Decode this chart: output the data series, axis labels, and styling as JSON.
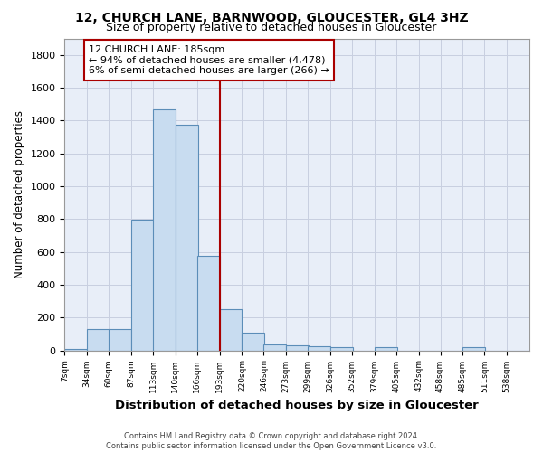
{
  "title_line1": "12, CHURCH LANE, BARNWOOD, GLOUCESTER, GL4 3HZ",
  "title_line2": "Size of property relative to detached houses in Gloucester",
  "xlabel": "Distribution of detached houses by size in Gloucester",
  "ylabel": "Number of detached properties",
  "bin_labels": [
    "7sqm",
    "34sqm",
    "60sqm",
    "87sqm",
    "113sqm",
    "140sqm",
    "166sqm",
    "193sqm",
    "220sqm",
    "246sqm",
    "273sqm",
    "299sqm",
    "326sqm",
    "352sqm",
    "379sqm",
    "405sqm",
    "432sqm",
    "458sqm",
    "485sqm",
    "511sqm",
    "538sqm"
  ],
  "bin_edges": [
    7,
    34,
    60,
    87,
    113,
    140,
    166,
    193,
    220,
    246,
    273,
    299,
    326,
    352,
    379,
    405,
    432,
    458,
    485,
    511,
    538
  ],
  "bar_heights": [
    10,
    130,
    130,
    795,
    1470,
    1375,
    575,
    250,
    110,
    35,
    30,
    25,
    20,
    0,
    20,
    0,
    0,
    0,
    20,
    0,
    0
  ],
  "bar_color": "#c8dcf0",
  "bar_edge_color": "#5b8db8",
  "grid_color": "#c8cfe0",
  "vline_x": 193,
  "vline_color": "#aa0000",
  "annotation_text": "12 CHURCH LANE: 185sqm\n← 94% of detached houses are smaller (4,478)\n6% of semi-detached houses are larger (266) →",
  "annotation_box_color": "#ffffff",
  "annotation_box_edge": "#aa0000",
  "ylim": [
    0,
    1900
  ],
  "yticks": [
    0,
    200,
    400,
    600,
    800,
    1000,
    1200,
    1400,
    1600,
    1800
  ],
  "footer1": "Contains HM Land Registry data © Crown copyright and database right 2024.",
  "footer2": "Contains public sector information licensed under the Open Government Licence v3.0.",
  "bg_color": "#ffffff",
  "plot_bg_color": "#e8eef8"
}
